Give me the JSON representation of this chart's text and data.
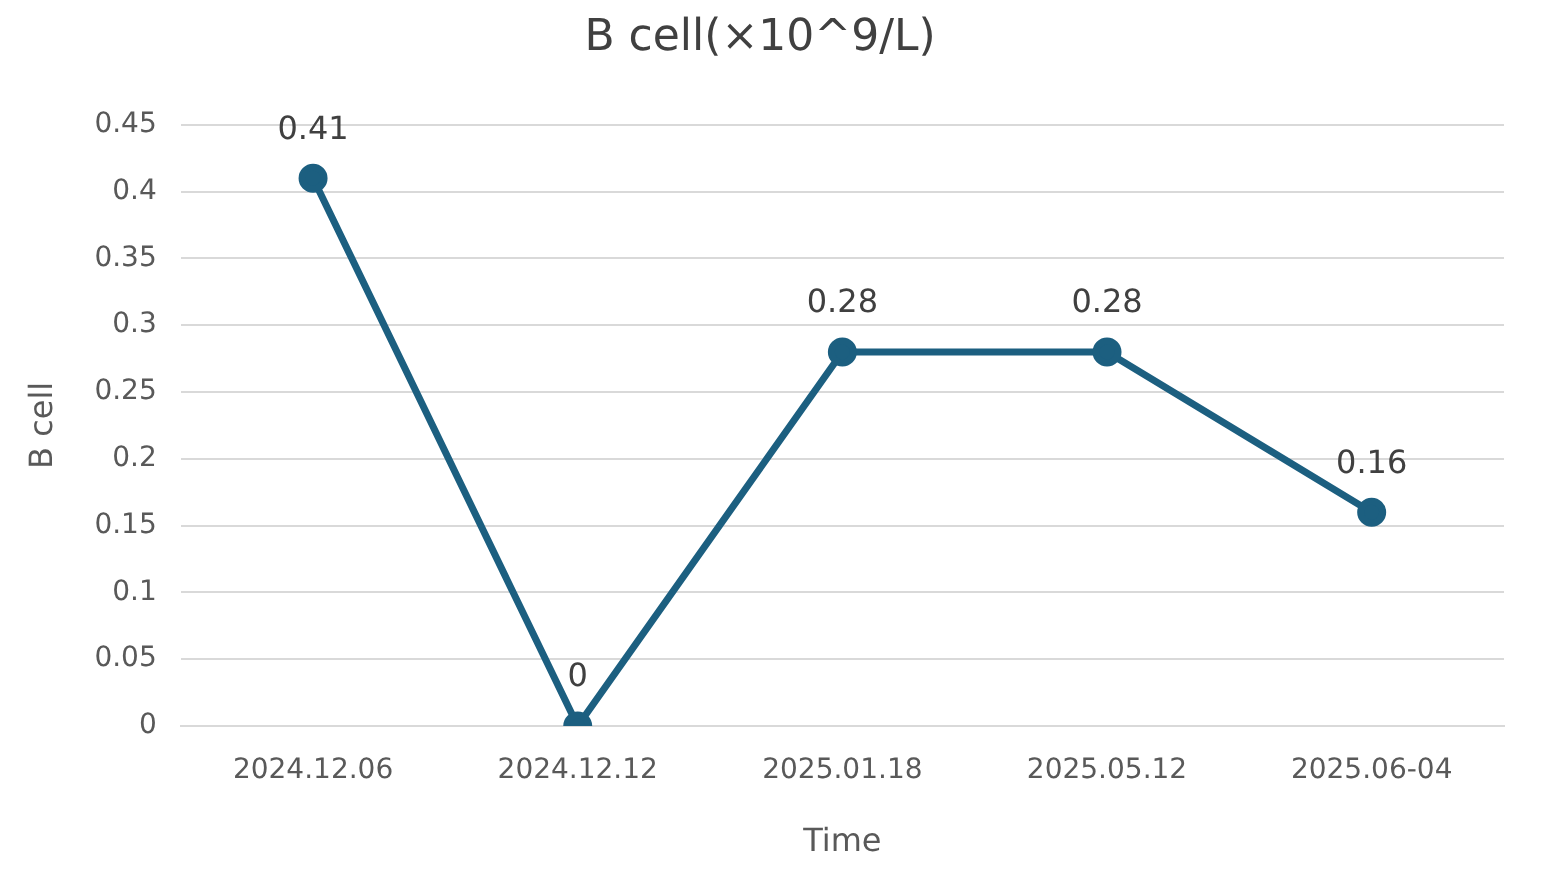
{
  "chart_data": {
    "type": "line",
    "title": "B cell(×10^9/L)",
    "xlabel": "Time",
    "ylabel": "B cell",
    "categories": [
      "2024.12.06",
      "2024.12.12",
      "2025.01.18",
      "2025.05.12",
      "2025.06-04"
    ],
    "series": [
      {
        "color": "#1c5f80",
        "values": [
          0.41,
          0,
          0.28,
          0.28,
          0.16
        ]
      }
    ],
    "ylim": [
      0,
      0.45
    ],
    "yticks": [
      0,
      {
        "value": 0.05,
        "label": "0.05"
      },
      {
        "value": 0.1,
        "label": "0.1"
      },
      {
        "value": 0.15,
        "label": "0.15"
      },
      {
        "value": 0.2,
        "label": "0.2"
      },
      {
        "value": 0.25,
        "label": "0.25"
      },
      {
        "value": 0.3,
        "label": "0.3"
      },
      {
        "value": 0.35,
        "label": "0.35"
      },
      {
        "value": 0.4,
        "label": "0.4"
      },
      {
        "value": 0.45,
        "label": "0.45"
      }
    ],
    "grid": "y",
    "legend": false,
    "marker": "circle",
    "line_style": "solid",
    "data_labels": true
  }
}
